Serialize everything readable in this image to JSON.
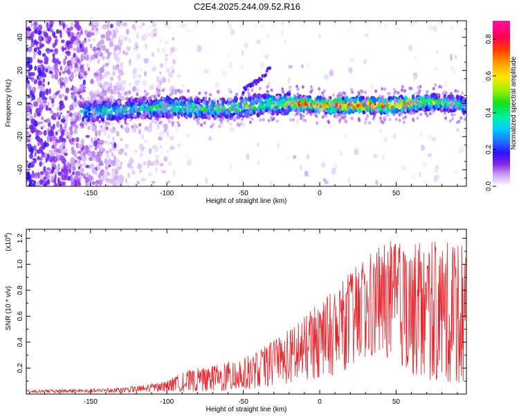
{
  "title": "C2E4.2025.244.09.52.R16",
  "chart_data": [
    {
      "type": "heatmap",
      "title": "C2E4.2025.244.09.52.R16",
      "xlabel": "Height of straight line (km)",
      "ylabel": "Frequency (Hz)",
      "xlim": [
        -192,
        96
      ],
      "ylim": [
        -50,
        50
      ],
      "x_ticks": [
        -150,
        -100,
        -50,
        0,
        50
      ],
      "x_tick_labels": [
        "-150",
        "-100",
        "-50",
        "0",
        "50"
      ],
      "y_ticks": [
        -40,
        -20,
        0,
        20,
        40
      ],
      "y_tick_labels": [
        "-40",
        "-20",
        "0",
        "20",
        "40"
      ],
      "colorbar": {
        "label": "Normalized spectral amplitude",
        "range": [
          0.0,
          0.9
        ],
        "ticks": [
          0.0,
          0.2,
          0.4,
          0.6,
          0.8
        ],
        "tick_labels": [
          "0.0",
          "0.2",
          "0.4",
          "0.6",
          "0.8"
        ]
      },
      "ridge": {
        "description_points_x": [
          -190,
          -150,
          -130,
          -100,
          -80,
          -60,
          -40,
          -25,
          -15,
          0,
          25,
          50,
          75,
          95
        ],
        "center_hz": [
          -5,
          -5,
          -4,
          -2,
          -3,
          -3,
          -1,
          0,
          0,
          -1,
          -1,
          -1,
          1,
          -1
        ],
        "peak_amplitude": [
          0.35,
          0.4,
          0.45,
          0.5,
          0.5,
          0.5,
          0.55,
          0.6,
          0.8,
          0.85,
          0.9,
          0.85,
          0.6,
          0.5
        ]
      },
      "branch": {
        "x": [
          -50,
          -40,
          -32
        ],
        "y": [
          8,
          14,
          22
        ]
      }
    },
    {
      "type": "line",
      "xlabel": "Height of straight line (km)",
      "ylabel": "SNR (10 * v/v)",
      "y_scale_label": "(x10",
      "y_scale_exp": "4",
      "y_scale_close": ")",
      "xlim": [
        -192,
        96
      ],
      "ylim": [
        0,
        1.27
      ],
      "x_ticks": [
        -150,
        -100,
        -50,
        0,
        50
      ],
      "x_tick_labels": [
        "-150",
        "-100",
        "-50",
        "0",
        "50"
      ],
      "y_ticks": [
        0.2,
        0.4,
        0.6,
        0.8,
        1.0,
        1.2
      ],
      "y_tick_labels": [
        "0.2",
        "0.4",
        "0.6",
        "0.8",
        "1.0",
        "1.2"
      ],
      "series": [
        {
          "name": "SNR",
          "color": "#e8242a",
          "envelope_x": [
            -192,
            -150,
            -130,
            -110,
            -100,
            -90,
            -80,
            -70,
            -60,
            -50,
            -40,
            -30,
            -20,
            -10,
            0,
            10,
            20,
            30,
            40,
            50,
            60,
            70,
            80,
            90,
            96
          ],
          "envelope_max": [
            0.03,
            0.04,
            0.05,
            0.08,
            0.1,
            0.17,
            0.2,
            0.22,
            0.25,
            0.28,
            0.33,
            0.42,
            0.5,
            0.6,
            0.72,
            0.8,
            0.95,
            1.05,
            1.15,
            1.2,
            1.15,
            1.2,
            1.15,
            1.22,
            1.1
          ],
          "envelope_min": [
            0.01,
            0.01,
            0.01,
            0.02,
            0.02,
            0.02,
            0.02,
            0.02,
            0.02,
            0.03,
            0.05,
            0.07,
            0.08,
            0.1,
            0.12,
            0.15,
            0.2,
            0.25,
            0.3,
            0.25,
            0.15,
            0.1,
            0.1,
            0.08,
            0.1
          ]
        }
      ]
    }
  ]
}
